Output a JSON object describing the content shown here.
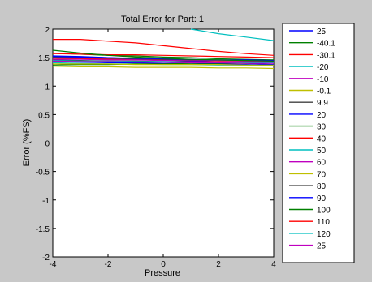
{
  "chart_data": {
    "type": "line",
    "title": "Total Error for Part: 1",
    "xlabel": "Pressure",
    "ylabel": "Error (%FS)",
    "xlim": [
      -4,
      4
    ],
    "ylim": [
      -2,
      2
    ],
    "xticks": [
      "-4",
      "-2",
      "0",
      "2",
      "4"
    ],
    "yticks": [
      "2",
      "1.5",
      "1",
      "0.5",
      "0",
      "-0.5",
      "-1",
      "-1.5",
      "-2"
    ],
    "x": [
      -4,
      -3,
      -2,
      -1,
      0,
      1,
      2,
      3,
      4
    ],
    "legend_position": "right",
    "series": [
      {
        "name": "25",
        "color": "#0000ff",
        "values": [
          1.43,
          1.42,
          1.41,
          1.41,
          1.4,
          1.4,
          1.39,
          1.38,
          1.37
        ]
      },
      {
        "name": "-40.1",
        "color": "#008000",
        "values": [
          1.58,
          1.56,
          1.54,
          1.53,
          1.51,
          1.5,
          1.48,
          1.47,
          1.46
        ]
      },
      {
        "name": "-30.1",
        "color": "#ff0000",
        "values": [
          1.57,
          1.56,
          1.55,
          1.55,
          1.54,
          1.53,
          1.52,
          1.51,
          1.5
        ]
      },
      {
        "name": "-20",
        "color": "#00bfbf",
        "values": [
          1.41,
          1.4,
          1.39,
          1.39,
          1.38,
          1.38,
          1.37,
          1.37,
          1.36
        ]
      },
      {
        "name": "-10",
        "color": "#bf00bf",
        "values": [
          1.5,
          1.49,
          1.48,
          1.47,
          1.46,
          1.46,
          1.45,
          1.44,
          1.43
        ]
      },
      {
        "name": "-0.1",
        "color": "#bfbf00",
        "values": [
          1.35,
          1.34,
          1.34,
          1.33,
          1.33,
          1.33,
          1.32,
          1.32,
          1.31
        ]
      },
      {
        "name": "9.9",
        "color": "#404040",
        "values": [
          1.46,
          1.45,
          1.44,
          1.44,
          1.43,
          1.43,
          1.42,
          1.42,
          1.41
        ]
      },
      {
        "name": "20",
        "color": "#0000ff",
        "values": [
          1.53,
          1.52,
          1.5,
          1.48,
          1.46,
          1.44,
          1.42,
          1.4,
          1.38
        ]
      },
      {
        "name": "30",
        "color": "#008000",
        "values": [
          1.37,
          1.38,
          1.38,
          1.39,
          1.39,
          1.4,
          1.4,
          1.4,
          1.41
        ]
      },
      {
        "name": "40",
        "color": "#ff0000",
        "values": [
          1.49,
          1.48,
          1.47,
          1.46,
          1.46,
          1.45,
          1.44,
          1.44,
          1.43
        ]
      },
      {
        "name": "50",
        "color": "#00bfbf",
        "values": [
          1.45,
          1.44,
          1.44,
          1.43,
          1.43,
          1.42,
          1.42,
          1.41,
          1.41
        ]
      },
      {
        "name": "60",
        "color": "#bf00bf",
        "values": [
          1.47,
          1.47,
          1.46,
          1.46,
          1.45,
          1.45,
          1.45,
          1.44,
          1.44
        ]
      },
      {
        "name": "70",
        "color": "#bfbf00",
        "values": [
          1.39,
          1.39,
          1.39,
          1.38,
          1.38,
          1.38,
          1.38,
          1.37,
          1.37
        ]
      },
      {
        "name": "80",
        "color": "#404040",
        "values": [
          1.51,
          1.5,
          1.49,
          1.48,
          1.47,
          1.46,
          1.46,
          1.45,
          1.44
        ]
      },
      {
        "name": "90",
        "color": "#0000ff",
        "values": [
          1.52,
          1.51,
          1.5,
          1.49,
          1.48,
          1.47,
          1.46,
          1.46,
          1.45
        ]
      },
      {
        "name": "100",
        "color": "#008000",
        "values": [
          1.63,
          1.58,
          1.54,
          1.51,
          1.49,
          1.47,
          1.46,
          1.45,
          1.44
        ]
      },
      {
        "name": "110",
        "color": "#ff0000",
        "values": [
          1.82,
          1.82,
          1.79,
          1.76,
          1.71,
          1.66,
          1.61,
          1.57,
          1.54
        ]
      },
      {
        "name": "120",
        "color": "#00bfbf",
        "values": [
          null,
          null,
          null,
          null,
          null,
          2.0,
          1.92,
          1.86,
          1.8
        ]
      },
      {
        "name": "25",
        "color": "#bf00bf",
        "values": [
          1.44,
          1.43,
          1.43,
          1.42,
          1.42,
          1.41,
          1.41,
          1.4,
          1.4
        ]
      }
    ]
  }
}
